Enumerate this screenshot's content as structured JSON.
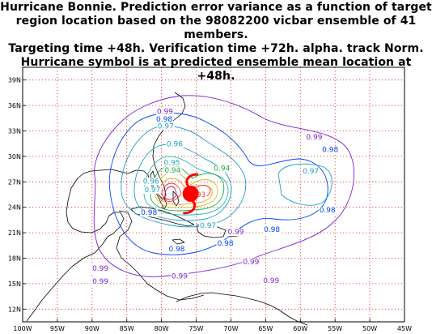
{
  "title_lines": [
    "Hurricane Bonnie.  Prediction error variance as a function of target",
    "region location based on the 98082200 vicbar ensemble of 41 members.",
    "Targeting time +48h. Verification time +72h. alpha. track Norm.",
    "Hurricane symbol is at predicted ensemble mean location at +48h."
  ],
  "chart_data": {
    "type": "contour-map",
    "lon_range": [
      -100,
      -45
    ],
    "lat_range": [
      10.5,
      40.5
    ],
    "grid": true,
    "x_ticks": [
      {
        "lon": -100,
        "label": "100W"
      },
      {
        "lon": -95,
        "label": "95W"
      },
      {
        "lon": -90,
        "label": "90W"
      },
      {
        "lon": -85,
        "label": "85W"
      },
      {
        "lon": -80,
        "label": "80W"
      },
      {
        "lon": -75,
        "label": "75W"
      },
      {
        "lon": -70,
        "label": "70W"
      },
      {
        "lon": -65,
        "label": "65W"
      },
      {
        "lon": -60,
        "label": "60W"
      },
      {
        "lon": -55,
        "label": "55W"
      },
      {
        "lon": -50,
        "label": "50W"
      },
      {
        "lon": -45,
        "label": "45W"
      }
    ],
    "y_ticks": [
      {
        "lat": 12,
        "label": "12N"
      },
      {
        "lat": 15,
        "label": "15N"
      },
      {
        "lat": 18,
        "label": "18N"
      },
      {
        "lat": 21,
        "label": "21N"
      },
      {
        "lat": 24,
        "label": "24N"
      },
      {
        "lat": 27,
        "label": "27N"
      },
      {
        "lat": 30,
        "label": "30N"
      },
      {
        "lat": 33,
        "label": "33N"
      },
      {
        "lat": 36,
        "label": "36N"
      },
      {
        "lat": 39,
        "label": "39N"
      }
    ],
    "hurricane_mean_location": {
      "lon": -75.8,
      "lat": 25.6
    },
    "contour_labels": [
      {
        "text": "0.99",
        "lon": -79.5,
        "lat": 35.0,
        "color": "#7a1fd6"
      },
      {
        "text": "0.98",
        "lon": -79.6,
        "lat": 34.1,
        "color": "#0040ff"
      },
      {
        "text": "0.97",
        "lon": -79.4,
        "lat": 33.3,
        "color": "#1aa0c8"
      },
      {
        "text": "0.99",
        "lon": -58.0,
        "lat": 32.0,
        "color": "#7a1fd6"
      },
      {
        "text": "0.98",
        "lon": -55.7,
        "lat": 30.5,
        "color": "#0040ff"
      },
      {
        "text": "0.97",
        "lon": -58.5,
        "lat": 28.0,
        "color": "#1aa0c8"
      },
      {
        "text": "0.96",
        "lon": -78.1,
        "lat": 31.2,
        "color": "#1aa0c8"
      },
      {
        "text": "0.95",
        "lon": -78.5,
        "lat": 29.0,
        "color": "#22b0b0"
      },
      {
        "text": "0.94",
        "lon": -78.4,
        "lat": 28.1,
        "color": "#18b040"
      },
      {
        "text": "0.96",
        "lon": -81.5,
        "lat": 26.8,
        "color": "#1aa0c8"
      },
      {
        "text": "0.97",
        "lon": -81.3,
        "lat": 25.8,
        "color": "#1aa0c8"
      },
      {
        "text": "0.94",
        "lon": -71.3,
        "lat": 28.3,
        "color": "#18b040"
      },
      {
        "text": "0.98",
        "lon": -81.8,
        "lat": 23.1,
        "color": "#0040ff"
      },
      {
        "text": "0.93",
        "lon": -74.8,
        "lat": 25.2,
        "color": "#ff3030"
      },
      {
        "text": "0.97",
        "lon": -73.3,
        "lat": 21.6,
        "color": "#1aa0c8"
      },
      {
        "text": "0.99",
        "lon": -69.3,
        "lat": 20.8,
        "color": "#7a1fd6"
      },
      {
        "text": "0.98",
        "lon": -64.1,
        "lat": 21.1,
        "color": "#0040ff"
      },
      {
        "text": "0.98",
        "lon": -56.1,
        "lat": 23.4,
        "color": "#0040ff"
      },
      {
        "text": "0.98",
        "lon": -77.8,
        "lat": 18.8,
        "color": "#0040ff"
      },
      {
        "text": "0.98",
        "lon": -70.8,
        "lat": 19.5,
        "color": "#0040ff"
      },
      {
        "text": "0.99",
        "lon": -88.8,
        "lat": 16.5,
        "color": "#7a1fd6"
      },
      {
        "text": "0.99",
        "lon": -88.8,
        "lat": 15.0,
        "color": "#7a1fd6"
      },
      {
        "text": "0.99",
        "lon": -77.4,
        "lat": 15.6,
        "color": "#7a1fd6"
      },
      {
        "text": "0.99",
        "lon": -67.1,
        "lat": 17.3,
        "color": "#7a1fd6"
      },
      {
        "text": "0.99",
        "lon": -64.2,
        "lat": 15.1,
        "color": "#7a1fd6"
      }
    ]
  }
}
